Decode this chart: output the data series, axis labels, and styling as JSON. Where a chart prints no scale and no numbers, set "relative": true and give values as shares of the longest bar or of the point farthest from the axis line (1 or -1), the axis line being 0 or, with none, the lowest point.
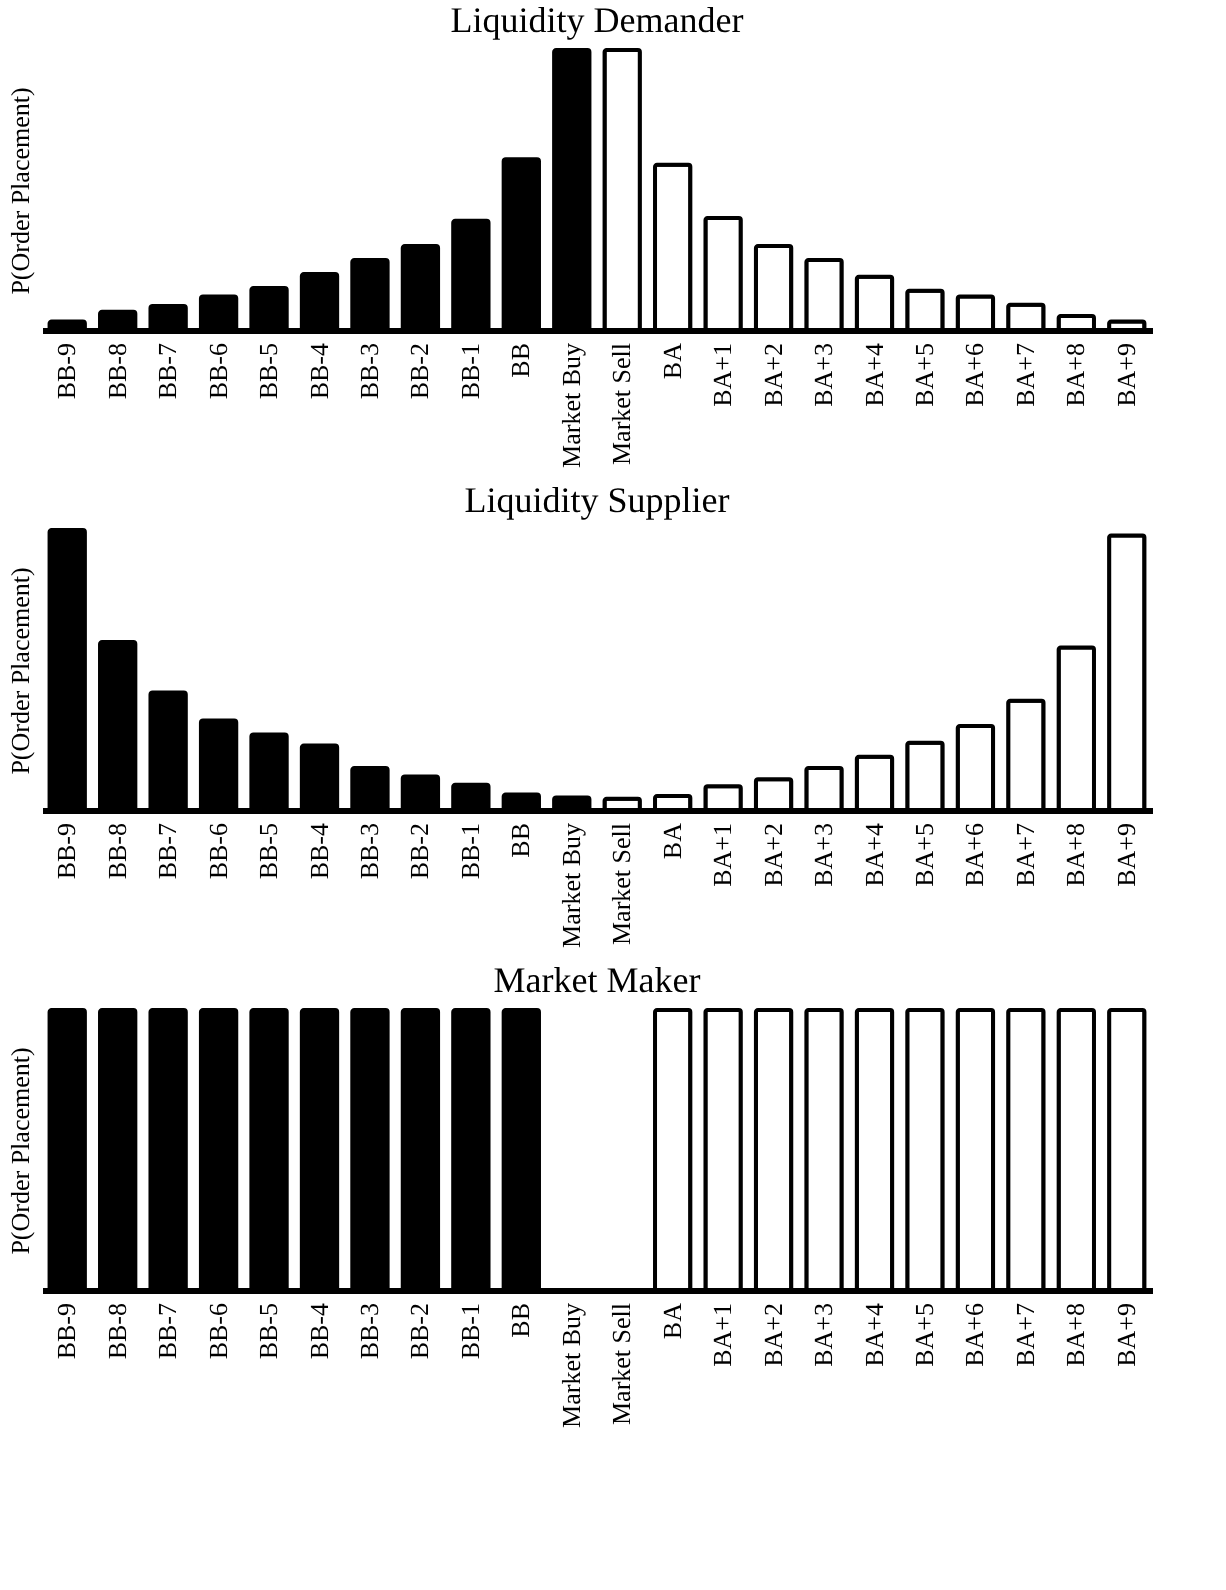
{
  "chart_data": [
    {
      "type": "bar",
      "title": "Liquidity Demander",
      "ylabel": "P(Order Placement)",
      "relative": true,
      "categories": [
        "BB-9",
        "BB-8",
        "BB-7",
        "BB-6",
        "BB-5",
        "BB-4",
        "BB-3",
        "BB-2",
        "BB-1",
        "BB",
        "Market Buy",
        "Market Sell",
        "BA",
        "BA+1",
        "BA+2",
        "BA+3",
        "BA+4",
        "BA+5",
        "BA+6",
        "BA+7",
        "BA+8",
        "BA+9"
      ],
      "values": [
        0.03,
        0.065,
        0.086,
        0.12,
        0.15,
        0.2,
        0.25,
        0.3,
        0.39,
        0.61,
        1,
        1,
        0.59,
        0.4,
        0.3,
        0.25,
        0.19,
        0.14,
        0.12,
        0.09,
        0.05,
        0.03
      ],
      "colors": [
        "#000000",
        "#000000",
        "#000000",
        "#000000",
        "#000000",
        "#000000",
        "#000000",
        "#000000",
        "#000000",
        "#000000",
        "#000000",
        "#ffffff",
        "#ffffff",
        "#ffffff",
        "#ffffff",
        "#ffffff",
        "#ffffff",
        "#ffffff",
        "#ffffff",
        "#ffffff",
        "#ffffff",
        "#ffffff"
      ]
    },
    {
      "type": "bar",
      "title": "Liquidity Supplier",
      "ylabel": "P(Order Placement)",
      "relative": true,
      "categories": [
        "BB-9",
        "BB-8",
        "BB-7",
        "BB-6",
        "BB-5",
        "BB-4",
        "BB-3",
        "BB-2",
        "BB-1",
        "BB",
        "Market Buy",
        "Market Sell",
        "BA",
        "BA+1",
        "BA+2",
        "BA+3",
        "BA+4",
        "BA+5",
        "BA+6",
        "BA+7",
        "BA+8",
        "BA+9"
      ],
      "values": [
        1,
        0.6,
        0.42,
        0.32,
        0.27,
        0.23,
        0.15,
        0.12,
        0.09,
        0.055,
        0.045,
        0.04,
        0.05,
        0.085,
        0.11,
        0.15,
        0.19,
        0.24,
        0.3,
        0.39,
        0.58,
        0.98
      ],
      "colors": [
        "#000000",
        "#000000",
        "#000000",
        "#000000",
        "#000000",
        "#000000",
        "#000000",
        "#000000",
        "#000000",
        "#000000",
        "#000000",
        "#ffffff",
        "#ffffff",
        "#ffffff",
        "#ffffff",
        "#ffffff",
        "#ffffff",
        "#ffffff",
        "#ffffff",
        "#ffffff",
        "#ffffff",
        "#ffffff"
      ]
    },
    {
      "type": "bar",
      "title": "Market Maker",
      "ylabel": "P(Order Placement)",
      "relative": true,
      "categories": [
        "BB-9",
        "BB-8",
        "BB-7",
        "BB-6",
        "BB-5",
        "BB-4",
        "BB-3",
        "BB-2",
        "BB-1",
        "BB",
        "Market Buy",
        "Market Sell",
        "BA",
        "BA+1",
        "BA+2",
        "BA+3",
        "BA+4",
        "BA+5",
        "BA+6",
        "BA+7",
        "BA+8",
        "BA+9"
      ],
      "values": [
        1,
        1,
        1,
        1,
        1,
        1,
        1,
        1,
        1,
        1,
        null,
        null,
        1,
        1,
        1,
        1,
        1,
        1,
        1,
        1,
        1,
        1
      ],
      "colors": [
        "#000000",
        "#000000",
        "#000000",
        "#000000",
        "#000000",
        "#000000",
        "#000000",
        "#000000",
        "#000000",
        "#000000",
        null,
        null,
        "#ffffff",
        "#ffffff",
        "#ffffff",
        "#ffffff",
        "#ffffff",
        "#ffffff",
        "#ffffff",
        "#ffffff",
        "#ffffff",
        "#ffffff"
      ]
    }
  ]
}
